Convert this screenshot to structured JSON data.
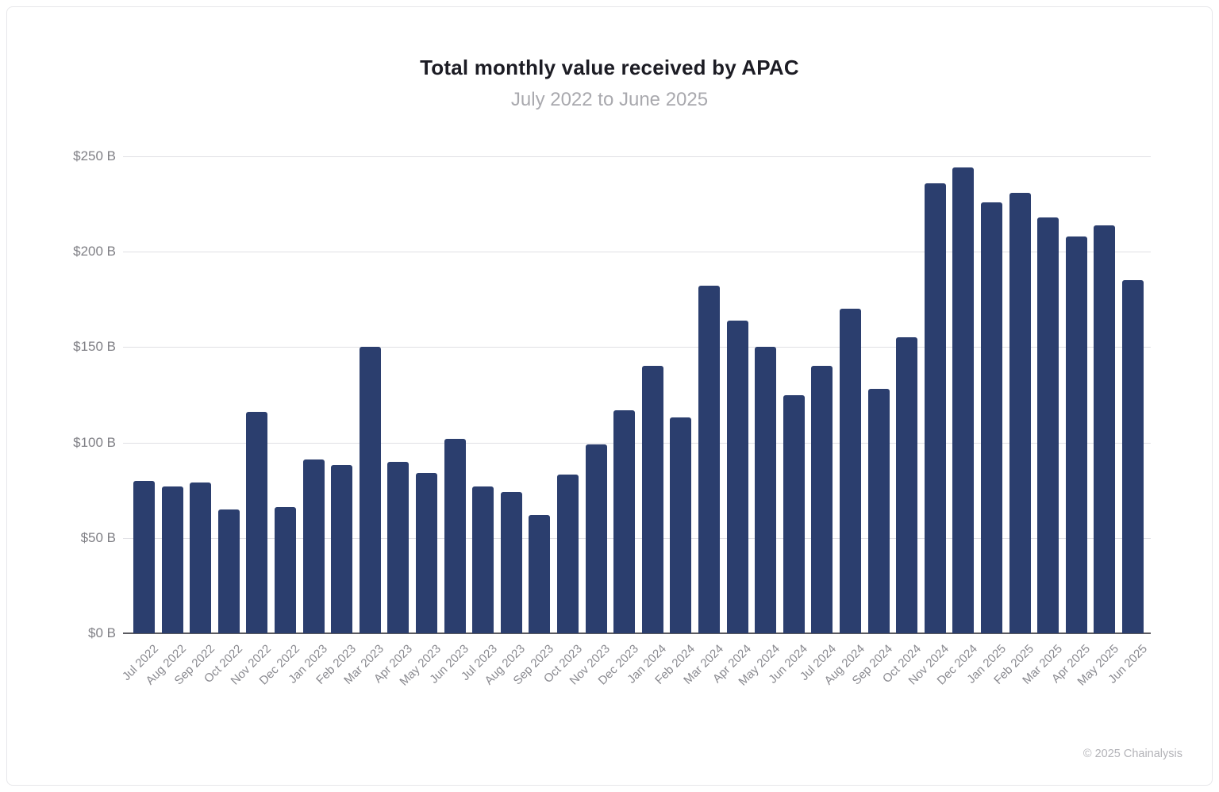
{
  "chart_data": {
    "type": "bar",
    "title": "Total monthly value received by APAC",
    "subtitle": "July 2022 to June 2025",
    "xlabel": "",
    "ylabel": "",
    "ylim": [
      0,
      250
    ],
    "yticks": [
      0,
      50,
      100,
      150,
      200,
      250
    ],
    "ytick_labels": [
      "$0 B",
      "$50 B",
      "$100 B",
      "$150 B",
      "$200 B",
      "$250 B"
    ],
    "grid": true,
    "legend": false,
    "bar_color": "#2b3e6e",
    "categories": [
      "Jul 2022",
      "Aug 2022",
      "Sep 2022",
      "Oct 2022",
      "Nov 2022",
      "Dec 2022",
      "Jan 2023",
      "Feb 2023",
      "Mar 2023",
      "Apr 2023",
      "May 2023",
      "Jun 2023",
      "Jul 2023",
      "Aug 2023",
      "Sep 2023",
      "Oct 2023",
      "Nov 2023",
      "Dec 2023",
      "Jan 2024",
      "Feb 2024",
      "Mar 2024",
      "Apr 2024",
      "May 2024",
      "Jun 2024",
      "Jul 2024",
      "Aug 2024",
      "Sep 2024",
      "Oct 2024",
      "Nov 2024",
      "Dec 2024",
      "Jan 2025",
      "Feb 2025",
      "Mar 2025",
      "Apr 2025",
      "May 2025",
      "Jun 2025"
    ],
    "values": [
      80,
      77,
      79,
      65,
      116,
      66,
      91,
      88,
      150,
      90,
      84,
      102,
      77,
      74,
      62,
      83,
      99,
      117,
      140,
      113,
      182,
      164,
      150,
      125,
      140,
      170,
      128,
      155,
      236,
      244,
      226,
      231,
      218,
      208,
      214,
      185
    ]
  },
  "footer": {
    "copyright": "© 2025 Chainalysis"
  }
}
